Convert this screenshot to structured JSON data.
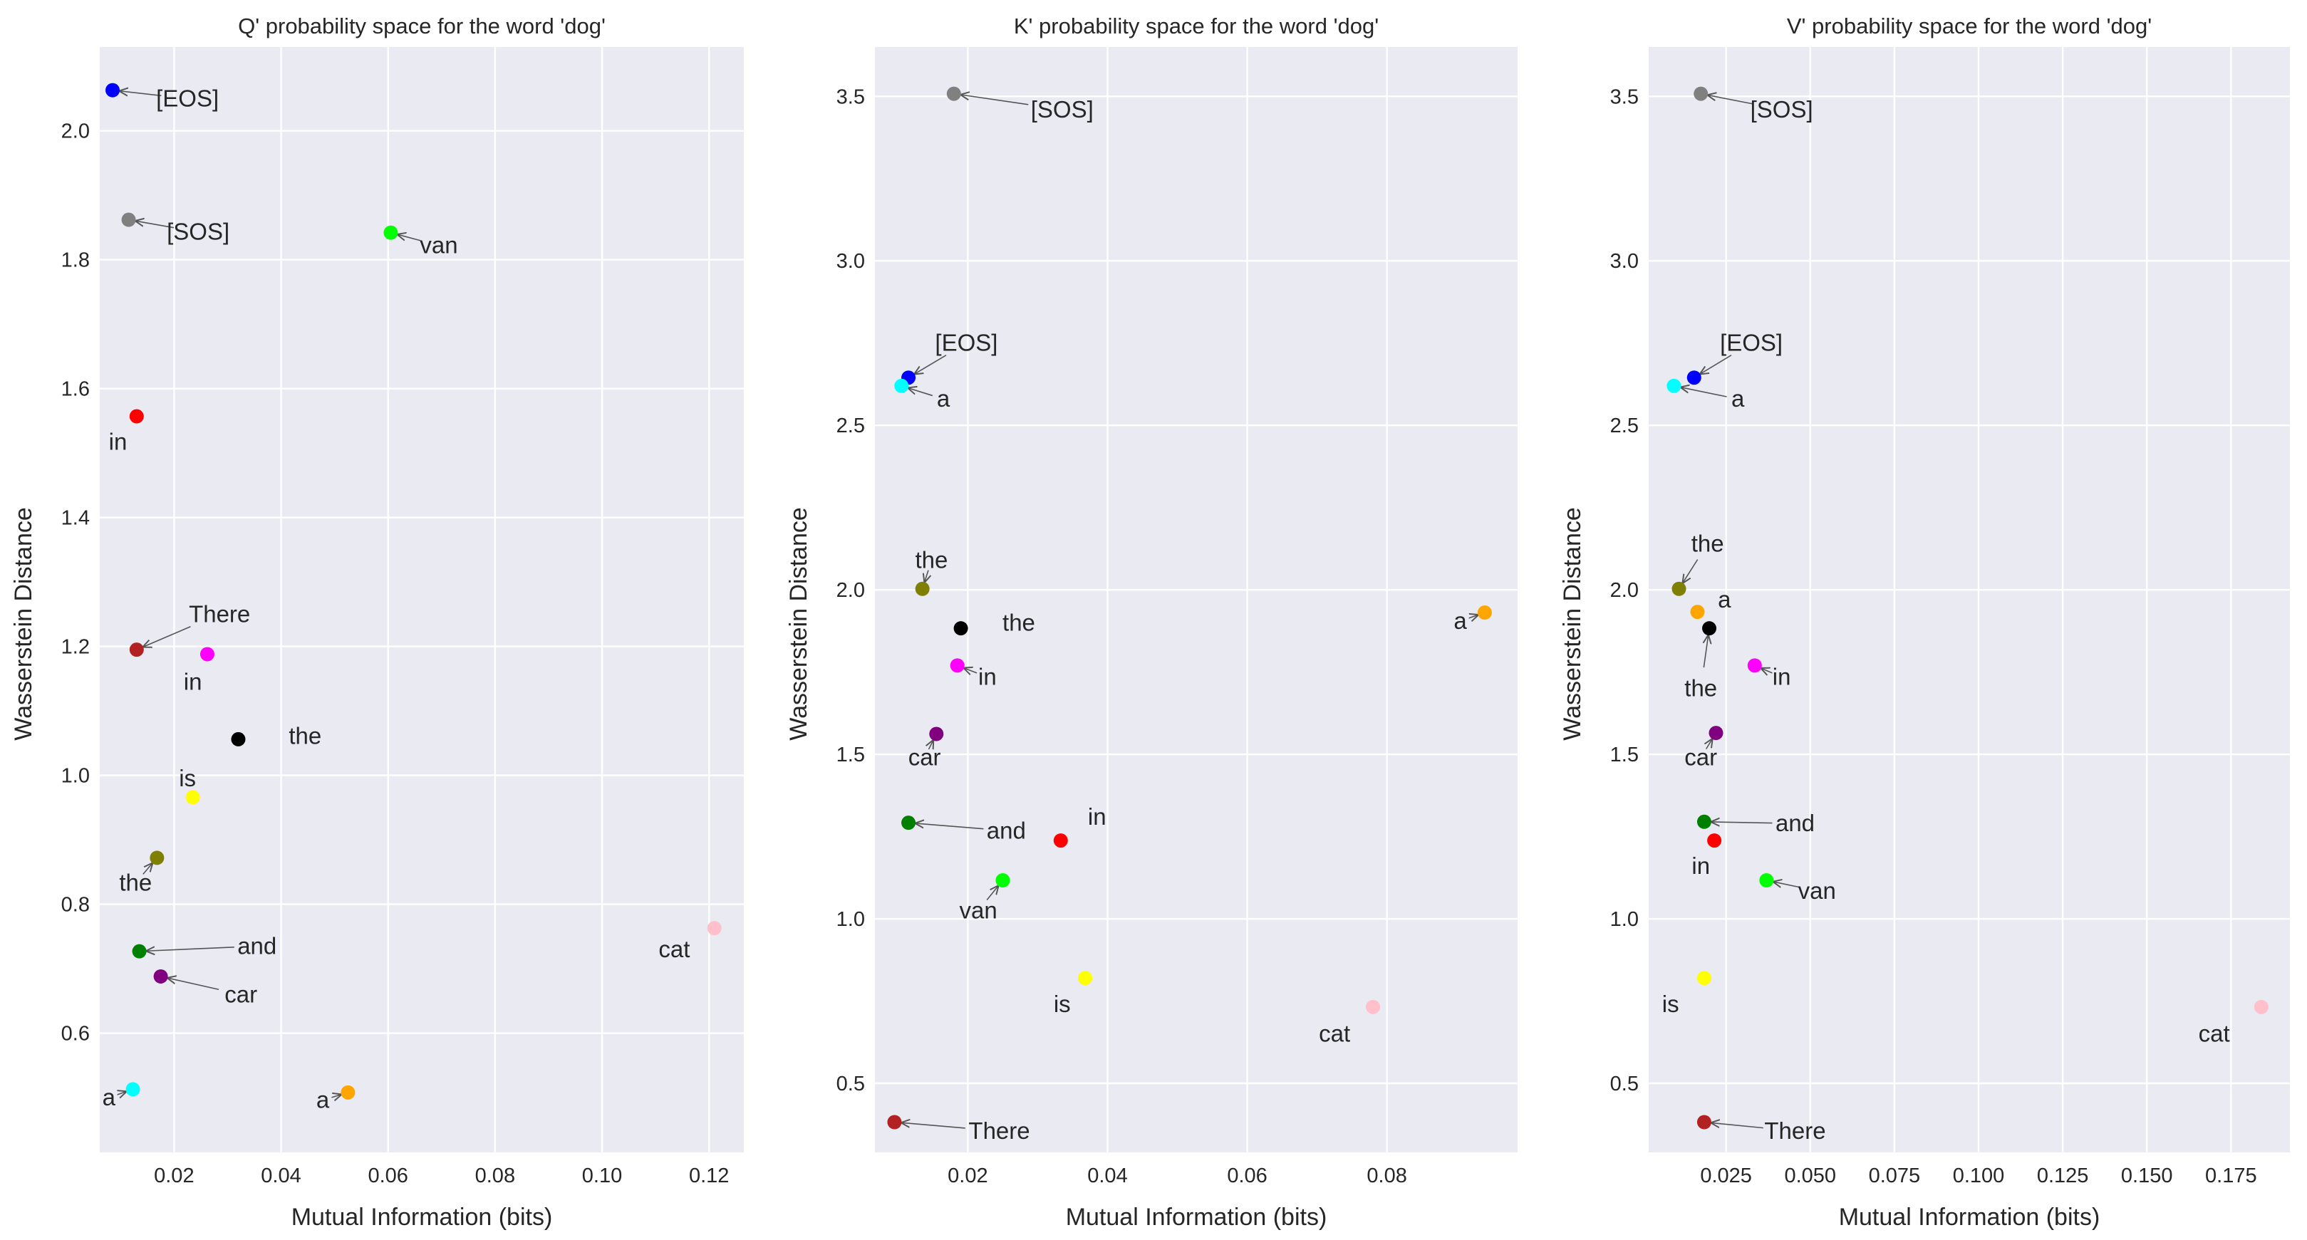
{
  "chart_data": [
    {
      "type": "scatter",
      "title": "Q' probability space for the word 'dog'",
      "xlabel": "Mutual Information (bits)",
      "ylabel": "Wasserstein Distance",
      "xlim": [
        0.0061,
        0.1265
      ],
      "ylim": [
        0.415,
        2.13
      ],
      "xticks": [
        0.02,
        0.04,
        0.06,
        0.08,
        0.1,
        0.12
      ],
      "xtick_labels": [
        "0.02",
        "0.04",
        "0.06",
        "0.08",
        "0.10",
        "0.12"
      ],
      "yticks": [
        0.6,
        0.8,
        1.0,
        1.2,
        1.4,
        1.6,
        1.8,
        2.0
      ],
      "ytick_labels": [
        "0.6",
        "0.8",
        "1.0",
        "1.2",
        "1.4",
        "1.6",
        "1.8",
        "2.0"
      ],
      "grid": true,
      "points": [
        {
          "label": "[EOS]",
          "x": 0.0085,
          "y": 2.063,
          "color": "#0000ff",
          "tx": 0.0225,
          "ty": 2.05,
          "arrow": true
        },
        {
          "label": "[SOS]",
          "x": 0.0115,
          "y": 1.862,
          "color": "#808080",
          "tx": 0.0245,
          "ty": 1.843,
          "arrow": true
        },
        {
          "label": "van",
          "x": 0.0605,
          "y": 1.842,
          "color": "#00ff00",
          "tx": 0.0695,
          "ty": 1.822,
          "arrow": true
        },
        {
          "label": "in",
          "x": 0.013,
          "y": 1.557,
          "color": "#ff0000",
          "tx": 0.0095,
          "ty": 1.517,
          "arrow": false
        },
        {
          "label": "There",
          "x": 0.013,
          "y": 1.195,
          "color": "#b22222",
          "tx": 0.0285,
          "ty": 1.25,
          "arrow": true
        },
        {
          "label": "in",
          "x": 0.0262,
          "y": 1.188,
          "color": "#ff00ff",
          "tx": 0.0235,
          "ty": 1.145,
          "arrow": false
        },
        {
          "label": "the",
          "x": 0.032,
          "y": 1.056,
          "color": "#000000",
          "tx": 0.0445,
          "ty": 1.061,
          "arrow": false
        },
        {
          "label": "is",
          "x": 0.0235,
          "y": 0.966,
          "color": "#ffff00",
          "tx": 0.0225,
          "ty": 0.995,
          "arrow": false
        },
        {
          "label": "the",
          "x": 0.0168,
          "y": 0.872,
          "color": "#808000",
          "tx": 0.0128,
          "ty": 0.833,
          "arrow": true
        },
        {
          "label": "cat",
          "x": 0.121,
          "y": 0.763,
          "color": "#ffc0cb",
          "tx": 0.1135,
          "ty": 0.73,
          "arrow": false
        },
        {
          "label": "and",
          "x": 0.0135,
          "y": 0.727,
          "color": "#008000",
          "tx": 0.0355,
          "ty": 0.735,
          "arrow": true
        },
        {
          "label": "car",
          "x": 0.0175,
          "y": 0.688,
          "color": "#800080",
          "tx": 0.0325,
          "ty": 0.66,
          "arrow": true
        },
        {
          "label": "a",
          "x": 0.0123,
          "y": 0.513,
          "color": "#00ffff",
          "tx": 0.0078,
          "ty": 0.5,
          "arrow": true
        },
        {
          "label": "a",
          "x": 0.0525,
          "y": 0.508,
          "color": "#ffa500",
          "tx": 0.0478,
          "ty": 0.496,
          "arrow": true
        }
      ]
    },
    {
      "type": "scatter",
      "title": "K' probability space for the word 'dog'",
      "xlabel": "Mutual Information (bits)",
      "ylabel": "Wasserstein Distance",
      "xlim": [
        0.0067,
        0.0987
      ],
      "ylim": [
        0.29,
        3.65
      ],
      "xticks": [
        0.02,
        0.04,
        0.06,
        0.08
      ],
      "xtick_labels": [
        "0.02",
        "0.04",
        "0.06",
        "0.08"
      ],
      "yticks": [
        0.5,
        1.0,
        1.5,
        2.0,
        2.5,
        3.0,
        3.5
      ],
      "ytick_labels": [
        "0.5",
        "1.0",
        "1.5",
        "2.0",
        "2.5",
        "3.0",
        "3.5"
      ],
      "grid": true,
      "points": [
        {
          "label": "[SOS]",
          "x": 0.018,
          "y": 3.508,
          "color": "#808080",
          "tx": 0.0335,
          "ty": 3.46,
          "arrow": true
        },
        {
          "label": "[EOS]",
          "x": 0.0115,
          "y": 2.645,
          "color": "#0000ff",
          "tx": 0.0198,
          "ty": 2.75,
          "arrow": true
        },
        {
          "label": "a",
          "x": 0.0105,
          "y": 2.62,
          "color": "#00ffff",
          "tx": 0.0165,
          "ty": 2.58,
          "arrow": true
        },
        {
          "label": "the",
          "x": 0.0135,
          "y": 2.003,
          "color": "#808000",
          "tx": 0.0148,
          "ty": 2.09,
          "arrow": true
        },
        {
          "label": "the",
          "x": 0.019,
          "y": 1.883,
          "color": "#000000",
          "tx": 0.0273,
          "ty": 1.9,
          "arrow": false
        },
        {
          "label": "a",
          "x": 0.094,
          "y": 1.931,
          "color": "#ffa500",
          "tx": 0.0905,
          "ty": 1.905,
          "arrow": true
        },
        {
          "label": "in",
          "x": 0.0185,
          "y": 1.77,
          "color": "#ff00ff",
          "tx": 0.0228,
          "ty": 1.735,
          "arrow": true
        },
        {
          "label": "car",
          "x": 0.0155,
          "y": 1.562,
          "color": "#800080",
          "tx": 0.0138,
          "ty": 1.49,
          "arrow": true
        },
        {
          "label": "and",
          "x": 0.0115,
          "y": 1.292,
          "color": "#008000",
          "tx": 0.0255,
          "ty": 1.268,
          "arrow": true
        },
        {
          "label": "in",
          "x": 0.0333,
          "y": 1.238,
          "color": "#ff0000",
          "tx": 0.0385,
          "ty": 1.31,
          "arrow": false
        },
        {
          "label": "van",
          "x": 0.025,
          "y": 1.117,
          "color": "#00ff00",
          "tx": 0.0215,
          "ty": 1.025,
          "arrow": true
        },
        {
          "label": "is",
          "x": 0.0368,
          "y": 0.82,
          "color": "#ffff00",
          "tx": 0.0335,
          "ty": 0.74,
          "arrow": false
        },
        {
          "label": "cat",
          "x": 0.078,
          "y": 0.732,
          "color": "#ffc0cb",
          "tx": 0.0725,
          "ty": 0.65,
          "arrow": false
        },
        {
          "label": "There",
          "x": 0.0095,
          "y": 0.382,
          "color": "#b22222",
          "tx": 0.0245,
          "ty": 0.355,
          "arrow": true
        }
      ]
    },
    {
      "type": "scatter",
      "title": "V' probability space for the word 'dog'",
      "xlabel": "Mutual Information (bits)",
      "ylabel": "Wasserstein Distance",
      "xlim": [
        0.002,
        0.1925
      ],
      "ylim": [
        0.29,
        3.65
      ],
      "xticks": [
        0.025,
        0.05,
        0.075,
        0.1,
        0.125,
        0.15,
        0.175
      ],
      "xtick_labels": [
        "0.025",
        "0.050",
        "0.075",
        "0.100",
        "0.125",
        "0.150",
        "0.175"
      ],
      "yticks": [
        0.5,
        1.0,
        1.5,
        2.0,
        2.5,
        3.0,
        3.5
      ],
      "ytick_labels": [
        "0.5",
        "1.0",
        "1.5",
        "2.0",
        "2.5",
        "3.0",
        "3.5"
      ],
      "grid": true,
      "points": [
        {
          "label": "[SOS]",
          "x": 0.0175,
          "y": 3.508,
          "color": "#808080",
          "tx": 0.0415,
          "ty": 3.46,
          "arrow": true
        },
        {
          "label": "[EOS]",
          "x": 0.0155,
          "y": 2.645,
          "color": "#0000ff",
          "tx": 0.0325,
          "ty": 2.75,
          "arrow": true
        },
        {
          "label": "a",
          "x": 0.0095,
          "y": 2.62,
          "color": "#00ffff",
          "tx": 0.0285,
          "ty": 2.58,
          "arrow": true
        },
        {
          "label": "the",
          "x": 0.011,
          "y": 2.003,
          "color": "#808000",
          "tx": 0.0195,
          "ty": 2.14,
          "arrow": true
        },
        {
          "label": "a",
          "x": 0.0165,
          "y": 1.933,
          "color": "#ffa500",
          "tx": 0.0245,
          "ty": 1.97,
          "arrow": false
        },
        {
          "label": "the",
          "x": 0.02,
          "y": 1.883,
          "color": "#000000",
          "tx": 0.0175,
          "ty": 1.7,
          "arrow": true
        },
        {
          "label": "in",
          "x": 0.0335,
          "y": 1.77,
          "color": "#ff00ff",
          "tx": 0.0415,
          "ty": 1.735,
          "arrow": true
        },
        {
          "label": "car",
          "x": 0.022,
          "y": 1.565,
          "color": "#800080",
          "tx": 0.0175,
          "ty": 1.49,
          "arrow": true
        },
        {
          "label": "and",
          "x": 0.0185,
          "y": 1.295,
          "color": "#008000",
          "tx": 0.0455,
          "ty": 1.29,
          "arrow": true
        },
        {
          "label": "in",
          "x": 0.0215,
          "y": 1.238,
          "color": "#ff0000",
          "tx": 0.0175,
          "ty": 1.16,
          "arrow": false
        },
        {
          "label": "van",
          "x": 0.037,
          "y": 1.117,
          "color": "#00ff00",
          "tx": 0.052,
          "ty": 1.085,
          "arrow": true
        },
        {
          "label": "is",
          "x": 0.0185,
          "y": 0.82,
          "color": "#ffff00",
          "tx": 0.0085,
          "ty": 0.74,
          "arrow": false
        },
        {
          "label": "cat",
          "x": 0.184,
          "y": 0.732,
          "color": "#ffc0cb",
          "tx": 0.17,
          "ty": 0.65,
          "arrow": false
        },
        {
          "label": "There",
          "x": 0.0185,
          "y": 0.382,
          "color": "#b22222",
          "tx": 0.0455,
          "ty": 0.355,
          "arrow": true
        }
      ]
    }
  ]
}
